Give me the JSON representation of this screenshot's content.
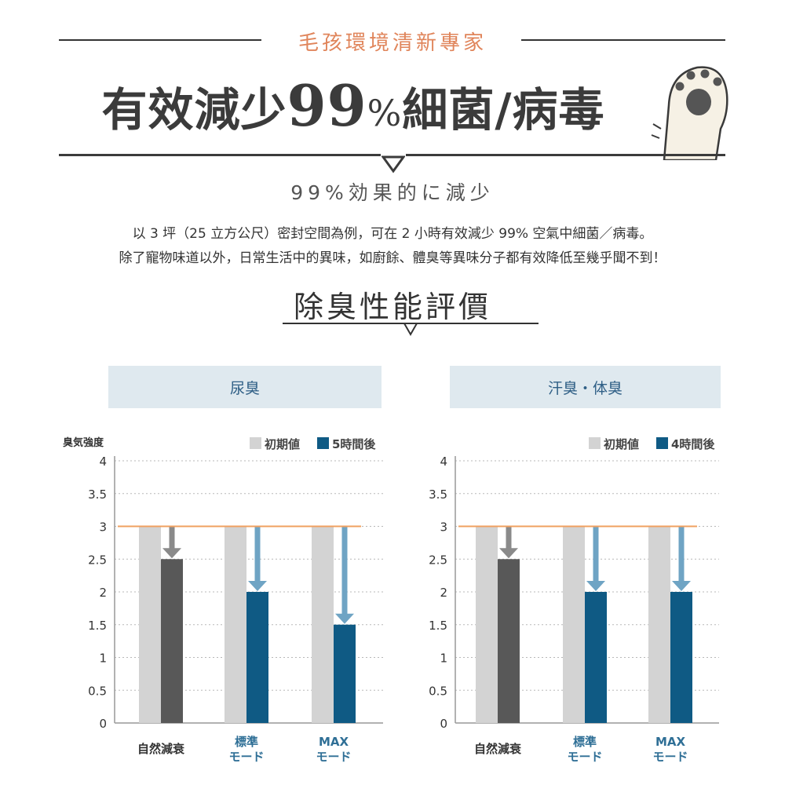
{
  "header": {
    "brand": "毛孩環境清新專家",
    "headline_pre": "有效減少",
    "headline_num": "99",
    "headline_pct": "%",
    "headline_post": "細菌/病毒",
    "subheadline": "99%効果的に減少",
    "description_line1": "以 3 坪（25 立方公尺）密封空間為例，可在 2 小時有效減少 99% 空氣中細菌／病毒。",
    "description_line2": "除了寵物味道以外，日常生活中的異味，如廚餘、體臭等異味分子都有效降低至幾乎聞不到！",
    "section_title": "除臭性能評價"
  },
  "colors": {
    "accent": "#e0855b",
    "initial_bar": "#d3d3d3",
    "natural_after": "#585858",
    "mode_after": "#0f5a84",
    "arrow_gray": "#8a8a8a",
    "arrow_blue": "#6fa4c4",
    "reference_line": "#f0a060",
    "panel_bg": "#dfe9ef"
  },
  "icons": {
    "paw": "paw-icon"
  },
  "chart_data": [
    {
      "type": "bar",
      "title": "尿臭",
      "ylabel": "臭気強度",
      "ylim": [
        0,
        4
      ],
      "yticks": [
        "0",
        "0.5",
        "1",
        "1.5",
        "2",
        "2.5",
        "3",
        "3.5",
        "4"
      ],
      "categories": [
        {
          "line1": "自然減衰",
          "line2": ""
        },
        {
          "line1": "標準",
          "line2": "モード"
        },
        {
          "line1": "MAX",
          "line2": "モード"
        }
      ],
      "series": [
        {
          "name": "初期値",
          "values": [
            3,
            3,
            3
          ]
        },
        {
          "name": "5時間後",
          "values": [
            2.5,
            2,
            1.5
          ]
        }
      ],
      "reference_line": 3,
      "grid": "dotted"
    },
    {
      "type": "bar",
      "title": "汗臭・体臭",
      "ylabel": "",
      "ylim": [
        0,
        4
      ],
      "yticks": [
        "0",
        "0.5",
        "1",
        "1.5",
        "2",
        "2.5",
        "3",
        "3.5",
        "4"
      ],
      "categories": [
        {
          "line1": "自然減衰",
          "line2": ""
        },
        {
          "line1": "標準",
          "line2": "モード"
        },
        {
          "line1": "MAX",
          "line2": "モード"
        }
      ],
      "series": [
        {
          "name": "初期値",
          "values": [
            3,
            3,
            3
          ]
        },
        {
          "name": "4時間後",
          "values": [
            2.5,
            2,
            2
          ]
        }
      ],
      "reference_line": 3,
      "grid": "dotted"
    }
  ]
}
